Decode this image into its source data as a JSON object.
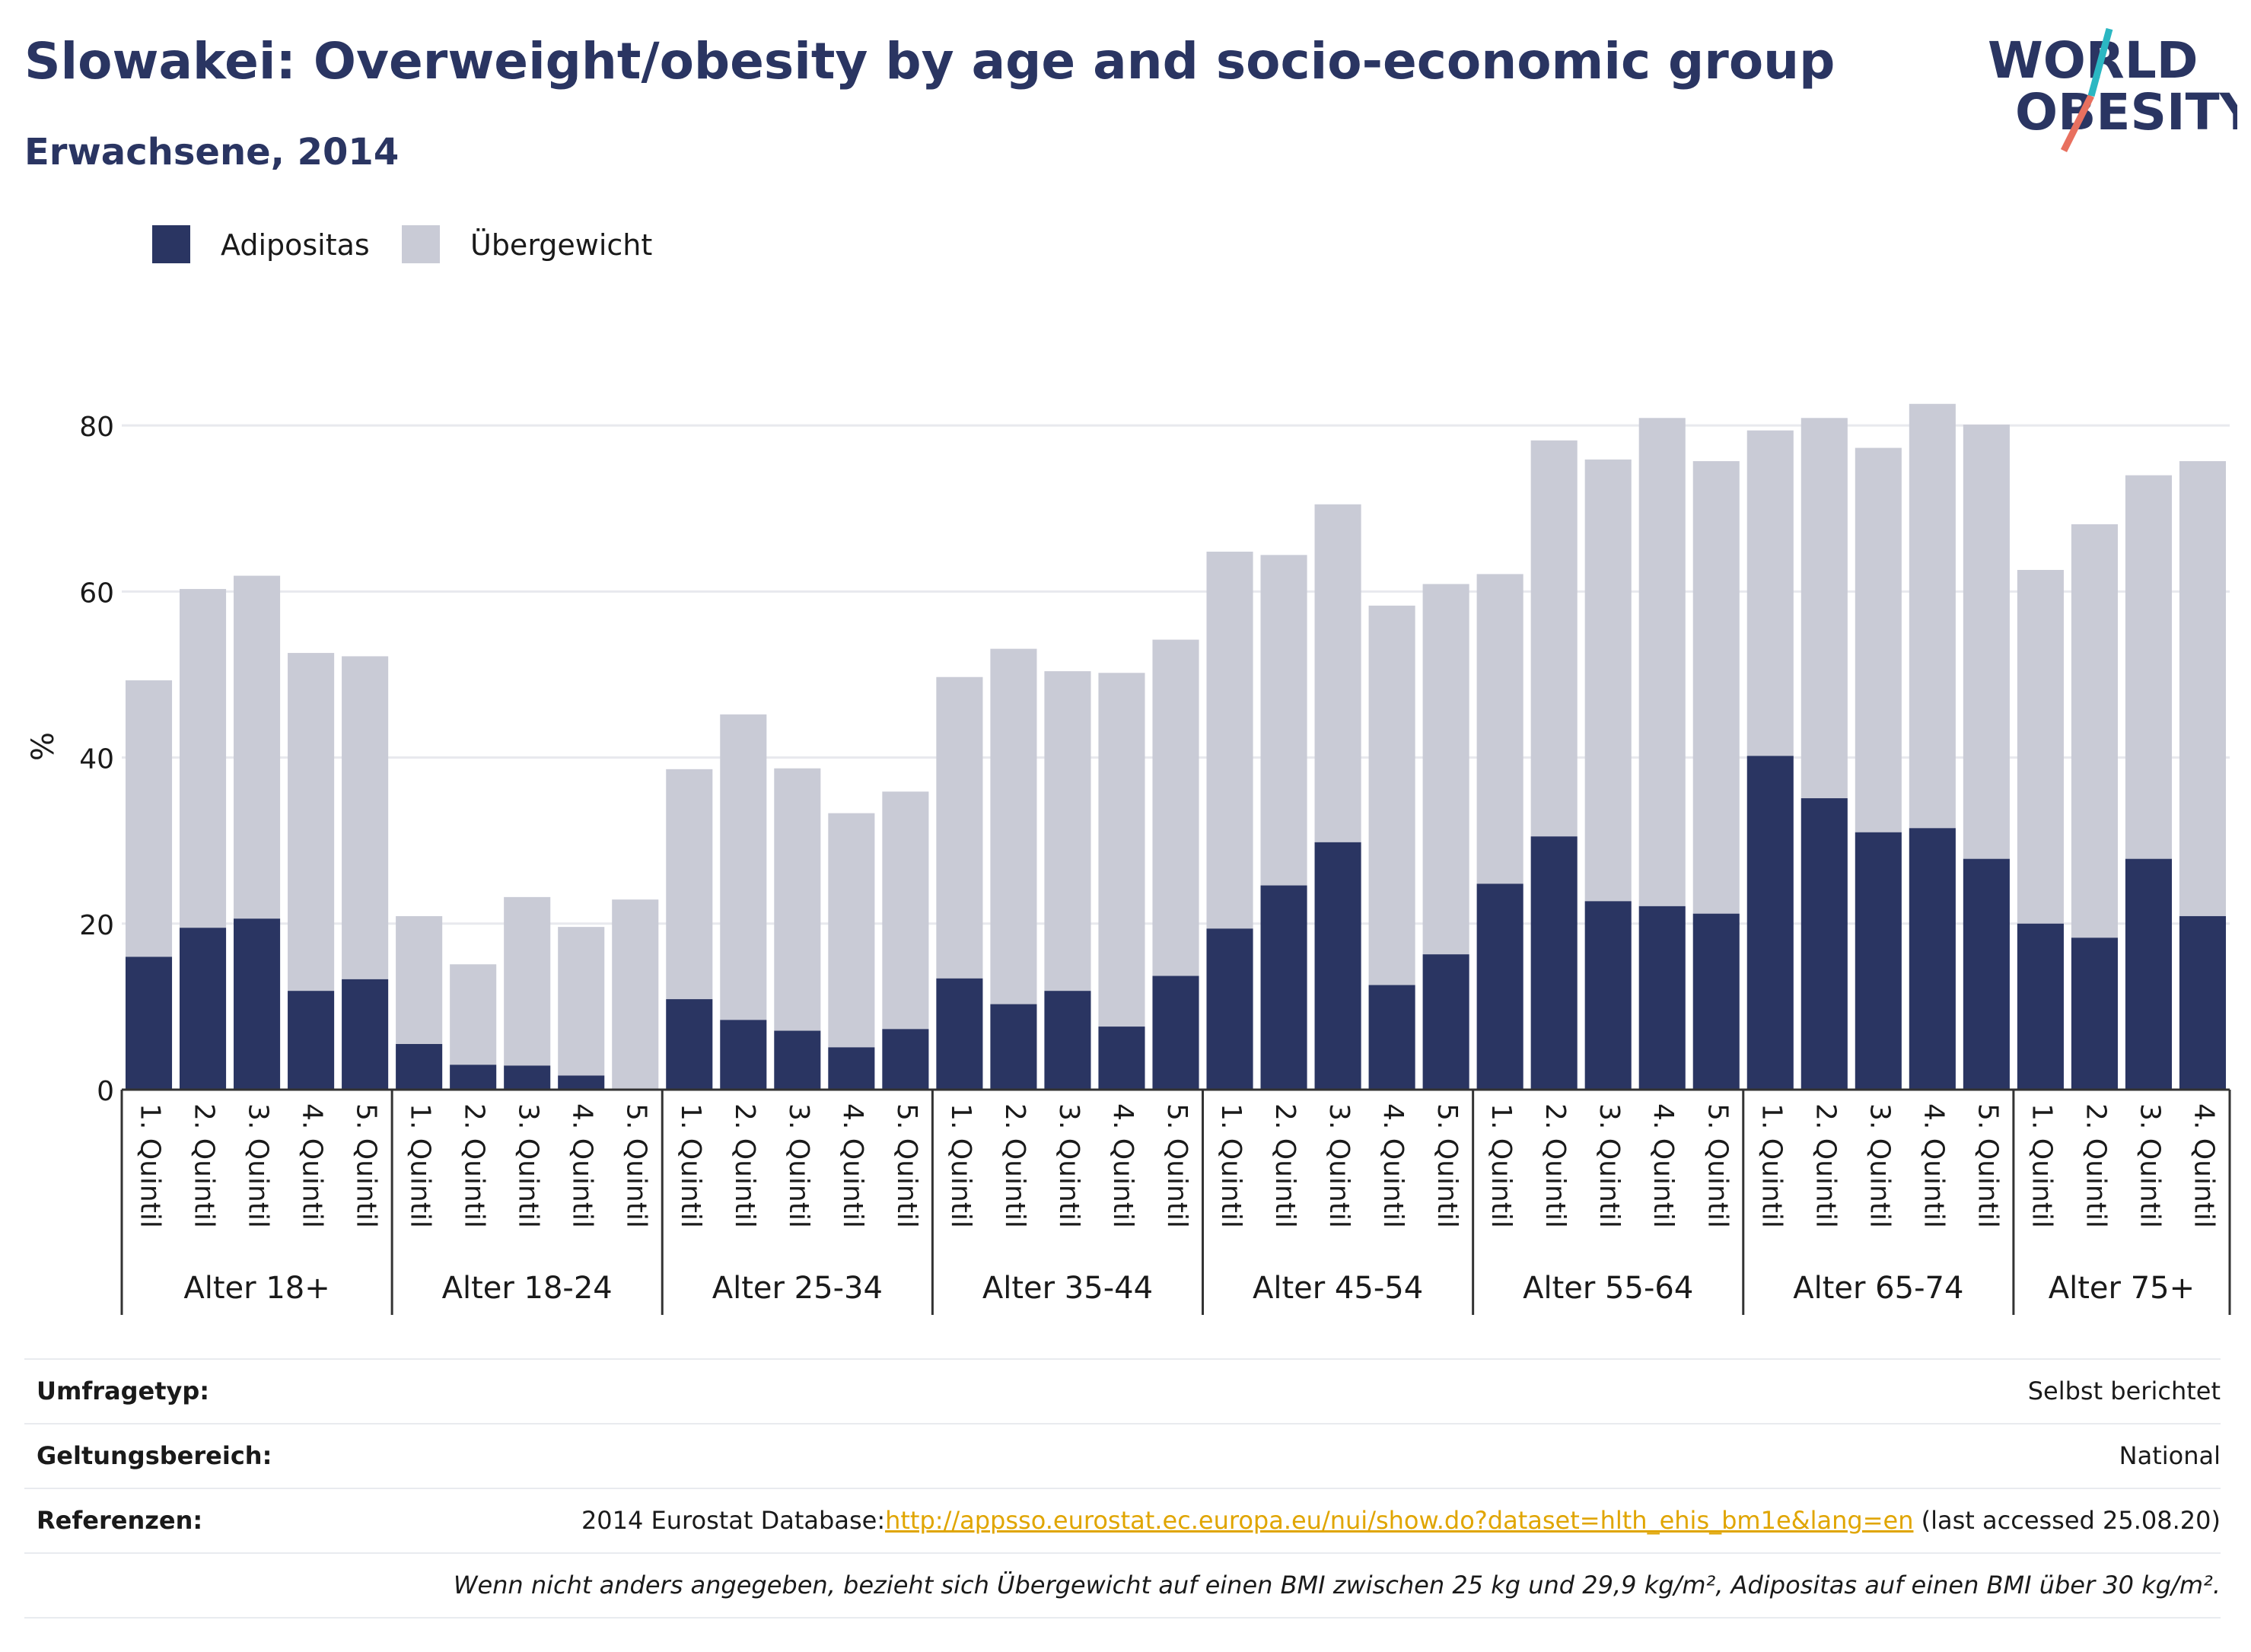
{
  "header": {
    "title": "Slowakei: Overweight/obesity by age and socio-economic group",
    "subtitle": "Erwachsene, 2014"
  },
  "logo": {
    "line1": "WORLD",
    "line2": "OBESITY"
  },
  "colors": {
    "obesity": "#2a3562",
    "overweight": "#c9cbd6",
    "text": "#2a3562",
    "link": "#e0a500"
  },
  "legend": [
    {
      "label": "Adipositas",
      "color": "#2a3562"
    },
    {
      "label": "Übergewicht",
      "color": "#c9cbd6"
    }
  ],
  "chart_data": {
    "type": "bar",
    "stacked": true,
    "ylabel": "%",
    "ylim": [
      0,
      90
    ],
    "yticks": [
      0,
      20,
      40,
      60,
      80
    ],
    "grid": true,
    "legend_position": "top-left",
    "groups": [
      {
        "label": "Alter 18+",
        "categories": [
          "1. Quintil",
          "2. Quintil",
          "3. Quintil",
          "4. Quintil",
          "5. Quintil"
        ],
        "adipositas": [
          16.0,
          19.5,
          20.6,
          11.9,
          13.3
        ],
        "total": [
          49.3,
          60.3,
          61.9,
          52.6,
          52.2
        ]
      },
      {
        "label": "Alter 18-24",
        "categories": [
          "1. Quintil",
          "2. Quintil",
          "3. Quintil",
          "4. Quintil",
          "5. Quintil"
        ],
        "adipositas": [
          5.5,
          3.0,
          2.9,
          1.7,
          0.0
        ],
        "total": [
          20.9,
          15.1,
          23.2,
          19.6,
          22.9
        ]
      },
      {
        "label": "Alter 25-34",
        "categories": [
          "1. Quintil",
          "2. Quintil",
          "3. Quintil",
          "4. Quintil",
          "5. Quintil"
        ],
        "adipositas": [
          10.9,
          8.4,
          7.1,
          5.1,
          7.3
        ],
        "total": [
          38.6,
          45.2,
          38.7,
          33.3,
          35.9
        ]
      },
      {
        "label": "Alter 35-44",
        "categories": [
          "1. Quintil",
          "2. Quintil",
          "3. Quintil",
          "4. Quintil",
          "5. Quintil"
        ],
        "adipositas": [
          13.4,
          10.3,
          11.9,
          7.6,
          13.7
        ],
        "total": [
          49.7,
          53.1,
          50.4,
          50.2,
          54.2
        ]
      },
      {
        "label": "Alter 45-54",
        "categories": [
          "1. Quintil",
          "2. Quintil",
          "3. Quintil",
          "4. Quintil",
          "5. Quintil"
        ],
        "adipositas": [
          19.4,
          24.6,
          29.8,
          12.6,
          16.3
        ],
        "total": [
          64.8,
          64.4,
          70.5,
          58.3,
          60.9
        ]
      },
      {
        "label": "Alter 55-64",
        "categories": [
          "1. Quintil",
          "2. Quintil",
          "3. Quintil",
          "4. Quintil",
          "5. Quintil"
        ],
        "adipositas": [
          24.8,
          30.5,
          22.7,
          22.1,
          21.2
        ],
        "total": [
          62.1,
          78.2,
          75.9,
          80.9,
          75.7
        ]
      },
      {
        "label": "Alter 65-74",
        "categories": [
          "1. Quintil",
          "2. Quintil",
          "3. Quintil",
          "4. Quintil",
          "5. Quintil"
        ],
        "adipositas": [
          40.2,
          35.1,
          31.0,
          31.5,
          27.8
        ],
        "total": [
          79.4,
          80.9,
          77.3,
          82.6,
          80.1
        ]
      },
      {
        "label": "Alter 75+",
        "categories": [
          "1. Quintil",
          "2. Quintil",
          "3. Quintil",
          "4. Quintil"
        ],
        "adipositas": [
          20.0,
          18.3,
          27.8,
          20.9
        ],
        "total": [
          62.6,
          68.1,
          74.0,
          75.7
        ]
      }
    ]
  },
  "footer": {
    "survey_label": "Umfragetyp:",
    "survey_value": "Selbst berichtet",
    "scope_label": "Geltungsbereich:",
    "scope_value": "National",
    "ref_label": "Referenzen:",
    "ref_prefix": "2014 Eurostat Database:",
    "ref_link": "http://appsso.eurostat.ec.europa.eu/nui/show.do?dataset=hlth_ehis_bm1e&lang=en",
    "ref_suffix": " (last accessed 25.08.20)",
    "note": "Wenn nicht anders angegeben, bezieht sich Übergewicht auf einen BMI zwischen 25 kg und 29,9 kg/m², Adipositas auf einen BMI über 30 kg/m²."
  }
}
